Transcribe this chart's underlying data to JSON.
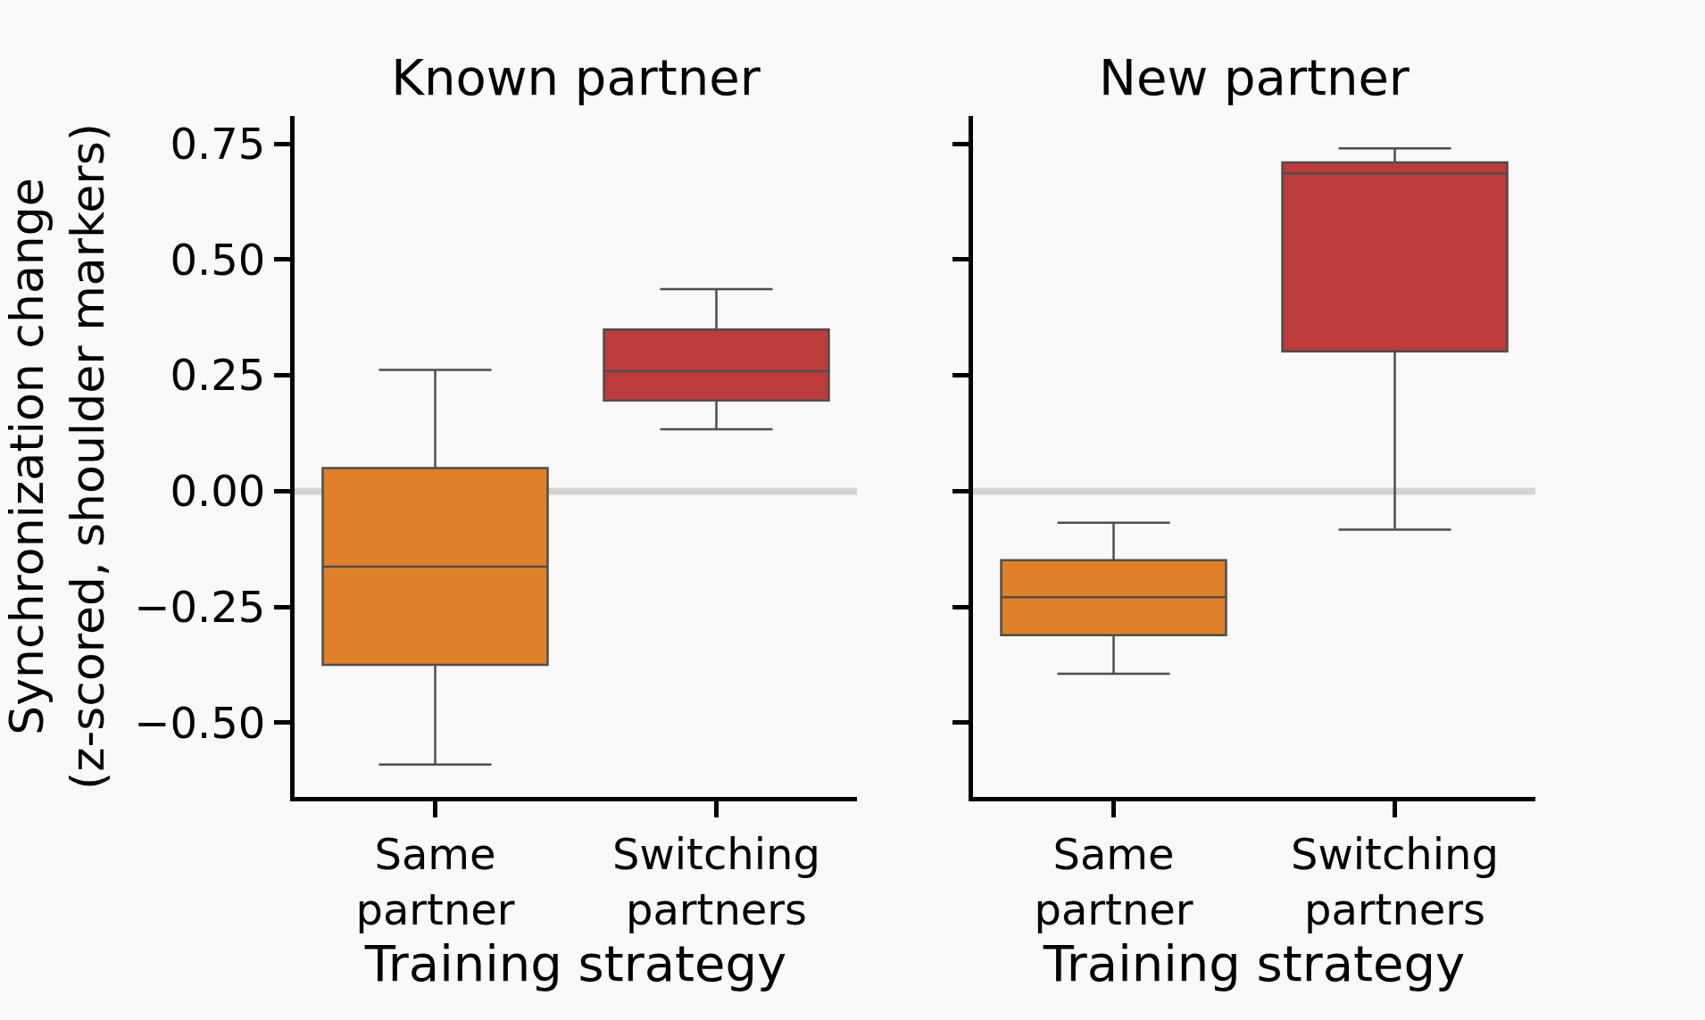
{
  "chart_data": [
    {
      "type": "box",
      "title": "Known partner",
      "xlabel": "Training strategy",
      "ylabel": "Synchronization change\n(z-scored, shoulder markers)",
      "categories": [
        "Same partner",
        "Switching partners"
      ],
      "colors": [
        "#e08028",
        "#bd3b3b"
      ],
      "boxes": [
        {
          "low": -0.59,
          "q1": -0.375,
          "median": -0.163,
          "q3": 0.05,
          "high": 0.262
        },
        {
          "low": 0.134,
          "q1": 0.196,
          "median": 0.259,
          "q3": 0.349,
          "high": 0.436
        }
      ],
      "ylim": [
        -0.66,
        0.81
      ],
      "yticks": [
        {
          "value": -0.5,
          "label": "−0.50"
        },
        {
          "value": -0.25,
          "label": "−0.25"
        },
        {
          "value": 0,
          "label": "0.00"
        },
        {
          "value": 0.25,
          "label": "0.25"
        },
        {
          "value": 0.5,
          "label": "0.50"
        },
        {
          "value": 0.75,
          "label": "0.75"
        }
      ],
      "ref_lines": [
        {
          "axis": "y",
          "value": 0,
          "color": "#d3d3d3"
        }
      ]
    },
    {
      "type": "box",
      "title": "New partner",
      "xlabel": "Training strategy",
      "categories": [
        "Same partner",
        "Switching partners"
      ],
      "colors": [
        "#e08028",
        "#bd3b3b"
      ],
      "boxes": [
        {
          "low": -0.394,
          "q1": -0.311,
          "median": -0.229,
          "q3": -0.149,
          "high": -0.068
        },
        {
          "low": -0.083,
          "q1": 0.302,
          "median": 0.686,
          "q3": 0.71,
          "high": 0.74
        }
      ],
      "ylim": [
        -0.66,
        0.81
      ],
      "yticks": [
        {
          "value": -0.5,
          "label": null
        },
        {
          "value": -0.25,
          "label": null
        },
        {
          "value": 0,
          "label": null
        },
        {
          "value": 0.25,
          "label": null
        },
        {
          "value": 0.5,
          "label": null
        },
        {
          "value": 0.75,
          "label": null
        }
      ],
      "ref_lines": [
        {
          "axis": "y",
          "value": 0,
          "color": "#d3d3d3"
        }
      ],
      "tick_labels": "x"
    }
  ]
}
